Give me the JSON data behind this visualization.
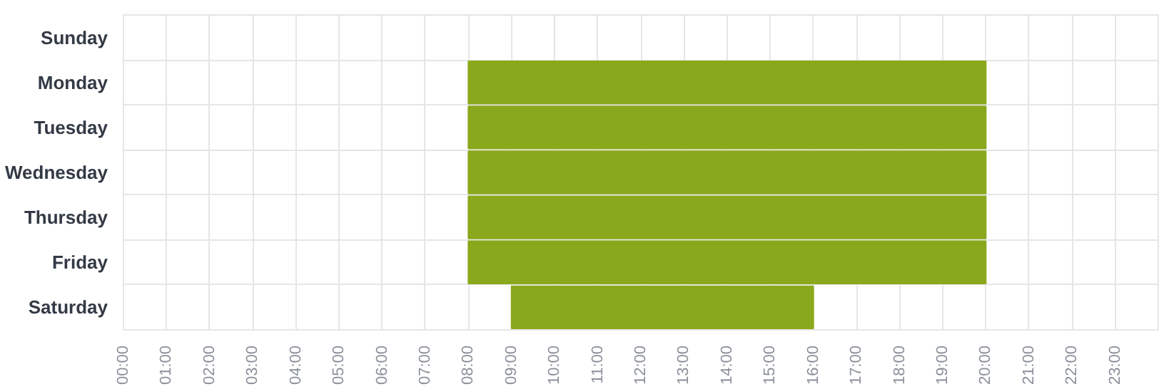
{
  "chart_data": {
    "type": "bar",
    "orientation": "horizontal",
    "categories": [
      "Sunday",
      "Monday",
      "Tuesday",
      "Wednesday",
      "Thursday",
      "Friday",
      "Saturday"
    ],
    "base": [
      null,
      8,
      8,
      8,
      8,
      8,
      9
    ],
    "values": [
      null,
      12,
      12,
      12,
      12,
      12,
      7
    ],
    "color": "#8aa81c",
    "grid": true,
    "xlim": [
      0,
      24
    ],
    "xticks": [
      {
        "value": 0,
        "label": "00:00"
      },
      {
        "value": 1,
        "label": "01:00"
      },
      {
        "value": 2,
        "label": "02:00"
      },
      {
        "value": 3,
        "label": "03:00"
      },
      {
        "value": 4,
        "label": "04:00"
      },
      {
        "value": 5,
        "label": "05:00"
      },
      {
        "value": 6,
        "label": "06:00"
      },
      {
        "value": 7,
        "label": "07:00"
      },
      {
        "value": 8,
        "label": "08:00"
      },
      {
        "value": 9,
        "label": "09:00"
      },
      {
        "value": 10,
        "label": "10:00"
      },
      {
        "value": 11,
        "label": "11:00"
      },
      {
        "value": 12,
        "label": "12:00"
      },
      {
        "value": 13,
        "label": "13:00"
      },
      {
        "value": 14,
        "label": "14:00"
      },
      {
        "value": 15,
        "label": "15:00"
      },
      {
        "value": 16,
        "label": "16:00"
      },
      {
        "value": 17,
        "label": "17:00"
      },
      {
        "value": 18,
        "label": "18:00"
      },
      {
        "value": 19,
        "label": "19:00"
      },
      {
        "value": 20,
        "label": "20:00"
      },
      {
        "value": 21,
        "label": "21:00"
      },
      {
        "value": 22,
        "label": "22:00"
      },
      {
        "value": 23,
        "label": "23:00"
      }
    ]
  }
}
